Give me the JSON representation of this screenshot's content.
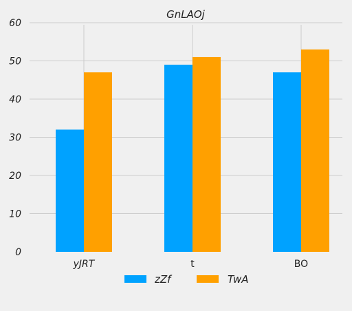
{
  "chart_data": {
    "type": "bar",
    "title": "GnLAOj",
    "xlabel": "",
    "ylabel": "",
    "categories": [
      "yJRT",
      "t",
      "BO"
    ],
    "category_italic": [
      true,
      false,
      false
    ],
    "series": [
      {
        "name": "zZf",
        "values": [
          32,
          49,
          47
        ],
        "color": "#00a2ff"
      },
      {
        "name": "TwA",
        "values": [
          47,
          51,
          53
        ],
        "color": "#ffa000"
      }
    ],
    "ylim": [
      0,
      60
    ],
    "yticks": [
      "0",
      "10",
      "20",
      "30",
      "40",
      "50",
      "60"
    ],
    "grid": true,
    "legend_position": "bottom-center",
    "background": "#f0f0f0"
  }
}
